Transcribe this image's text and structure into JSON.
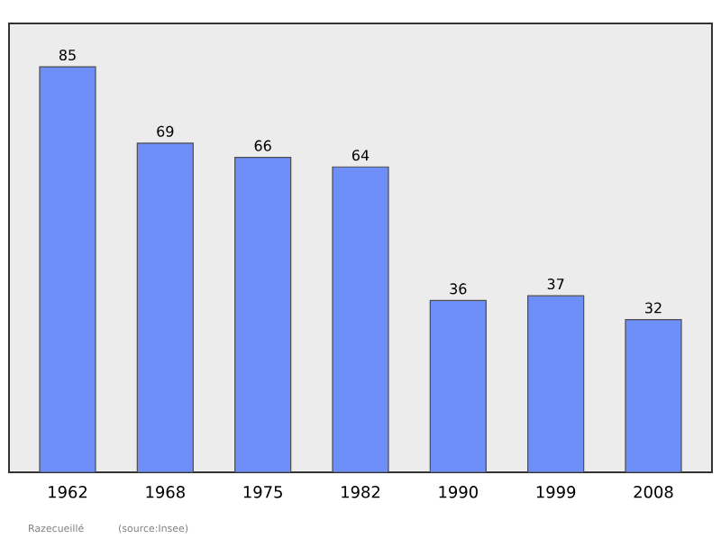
{
  "chart_data": {
    "type": "bar",
    "categories": [
      "1962",
      "1968",
      "1975",
      "1982",
      "1990",
      "1999",
      "2008"
    ],
    "values": [
      85,
      69,
      66,
      64,
      36,
      37,
      32
    ],
    "color": "#6f8ff8",
    "data_labels": true,
    "annotations": [
      "Razecueillé",
      "(source:Insee)"
    ]
  }
}
